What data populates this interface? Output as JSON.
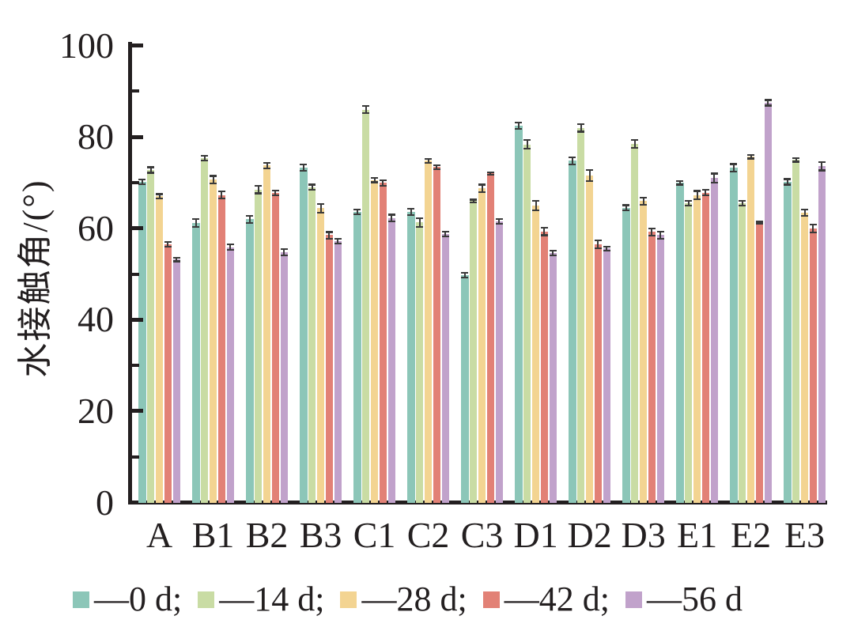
{
  "figure": {
    "background": "#ffffff",
    "text_color": "#231f20",
    "axis_color": "#231f20"
  },
  "y_axis": {
    "label": "水接触角/(°)",
    "tick_labels": [
      "100",
      "80",
      "60",
      "40",
      "20",
      "0"
    ],
    "tick_values": [
      100,
      80,
      60,
      40,
      20,
      0
    ],
    "min": 0,
    "max": 100,
    "major_step": 20,
    "minor_step": 10
  },
  "x_axis": {
    "categories": [
      "A",
      "B1",
      "B2",
      "B3",
      "C1",
      "C2",
      "C3",
      "D1",
      "D2",
      "D3",
      "E1",
      "E2",
      "E3"
    ]
  },
  "legend": {
    "items": [
      {
        "label": "—0 d;",
        "color": "#8CC6B8"
      },
      {
        "label": "—14 d;",
        "color": "#C9DCA4"
      },
      {
        "label": "—28 d;",
        "color": "#F3D492"
      },
      {
        "label": "—42 d;",
        "color": "#E28176"
      },
      {
        "label": "—56 d",
        "color": "#C1A2CB"
      }
    ]
  },
  "chart_data": {
    "type": "bar",
    "title": "",
    "xlabel": "",
    "ylabel": "水接触角/(°)",
    "ylim": [
      0,
      100
    ],
    "grid": false,
    "legend_position": "bottom",
    "error_bar_color": "#3a3a3a",
    "categories": [
      "A",
      "B1",
      "B2",
      "B3",
      "C1",
      "C2",
      "C3",
      "D1",
      "D2",
      "D3",
      "E1",
      "E2",
      "E3"
    ],
    "series": [
      {
        "name": "0 d",
        "color": "#8CC6B8",
        "values": [
          70.2,
          61.2,
          62.0,
          73.3,
          63.6,
          63.6,
          49.8,
          82.5,
          74.8,
          64.5,
          70.0,
          73.3,
          70.2
        ],
        "errors": [
          0.5,
          0.8,
          0.8,
          0.7,
          0.5,
          0.7,
          0.5,
          0.7,
          0.8,
          0.6,
          0.4,
          0.8,
          0.6
        ]
      },
      {
        "name": "14 d",
        "color": "#C9DCA4",
        "values": [
          72.8,
          75.4,
          68.5,
          69.0,
          86.0,
          61.3,
          66.0,
          78.4,
          82.0,
          78.5,
          65.5,
          65.5,
          75.0
        ],
        "errors": [
          0.6,
          0.5,
          0.8,
          0.6,
          0.8,
          0.9,
          0.3,
          1.0,
          0.8,
          0.8,
          0.5,
          0.5,
          0.4
        ]
      },
      {
        "name": "28 d",
        "color": "#F3D492",
        "values": [
          67.0,
          70.7,
          73.8,
          64.4,
          70.6,
          74.8,
          68.8,
          65.0,
          71.6,
          66.0,
          67.3,
          75.7,
          63.5
        ],
        "errors": [
          0.5,
          0.8,
          0.6,
          0.9,
          0.5,
          0.4,
          0.8,
          1.0,
          1.2,
          0.8,
          0.9,
          0.4,
          0.7
        ]
      },
      {
        "name": "42 d",
        "color": "#E28176",
        "values": [
          56.5,
          67.3,
          67.8,
          58.5,
          70.0,
          73.4,
          72.0,
          59.3,
          56.5,
          59.2,
          67.8,
          61.3,
          60.0
        ],
        "errors": [
          0.5,
          0.8,
          0.5,
          0.7,
          0.6,
          0.4,
          0.3,
          0.8,
          0.9,
          0.8,
          0.6,
          0.2,
          0.9
        ]
      },
      {
        "name": "56 d",
        "color": "#C1A2CB",
        "values": [
          53.2,
          55.9,
          54.8,
          57.2,
          62.3,
          58.8,
          61.5,
          54.6,
          55.6,
          58.5,
          71.0,
          87.5,
          73.6
        ],
        "errors": [
          0.4,
          0.6,
          0.7,
          0.5,
          0.7,
          0.5,
          0.5,
          0.5,
          0.4,
          0.8,
          1.0,
          0.6,
          0.9
        ]
      }
    ]
  }
}
